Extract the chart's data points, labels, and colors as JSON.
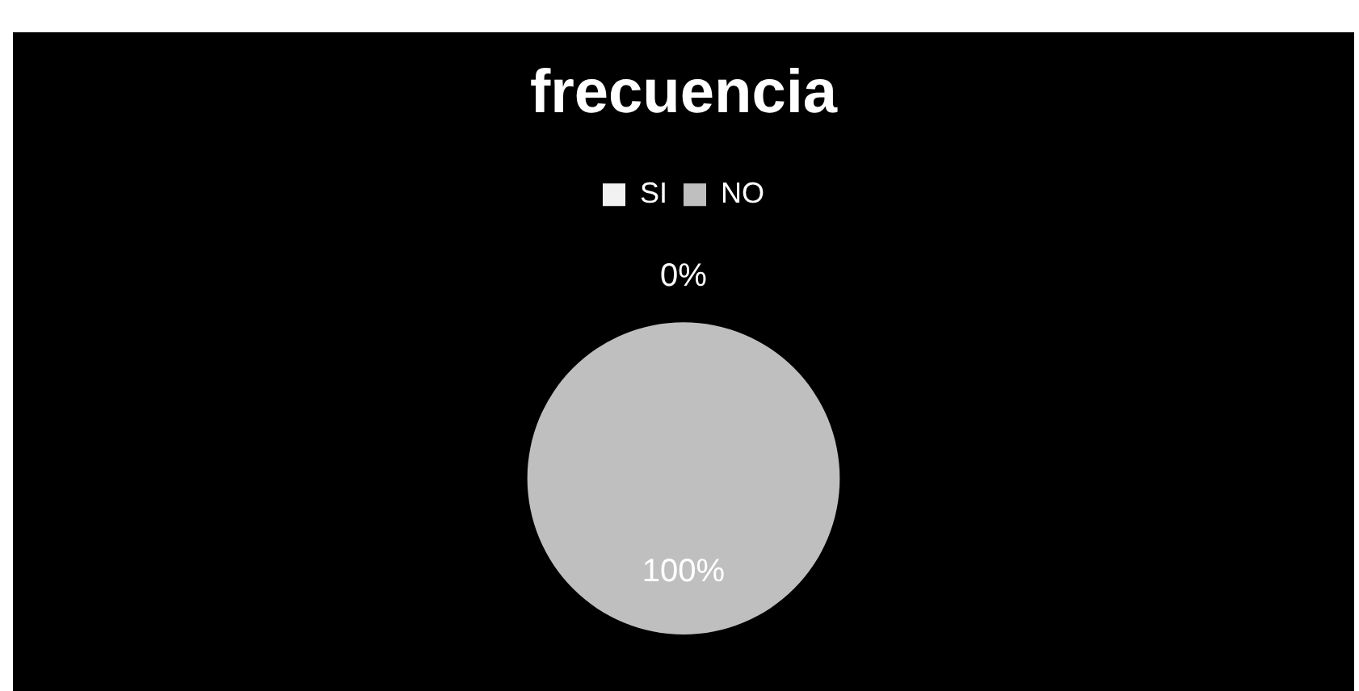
{
  "chart_data": {
    "type": "pie",
    "title": "frecuencia",
    "categories": [
      "SI",
      "NO"
    ],
    "values": [
      0,
      100
    ],
    "colors": [
      "#f2f2f2",
      "#bfbfbf"
    ],
    "legend": "top",
    "value_labels": [
      "0%",
      "100%"
    ]
  }
}
